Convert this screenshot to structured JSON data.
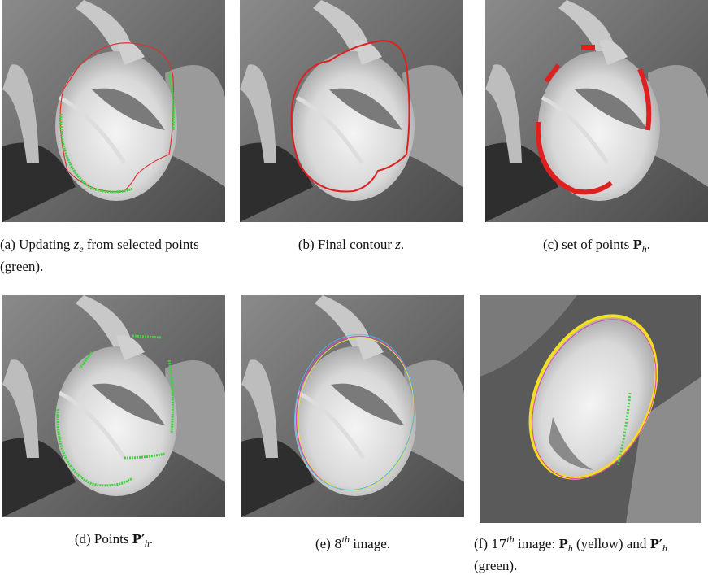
{
  "figure": {
    "panels": [
      {
        "caption": [
          "(a)  Updating ",
          "z",
          "e",
          " from selected points (green)."
        ]
      },
      {
        "caption": [
          "(b)  Final contour ",
          "z",
          "."
        ]
      },
      {
        "caption": [
          "(c)  set of points ",
          "P",
          "h",
          "."
        ]
      },
      {
        "caption": [
          "(d)  Points ",
          "P′",
          "h",
          "."
        ]
      },
      {
        "caption": [
          "(e)  ",
          "8",
          "th",
          " image."
        ]
      },
      {
        "caption": [
          "(f)  ",
          "17",
          "th",
          " image: ",
          "P",
          "h",
          " (yellow) and ",
          "P′",
          "h",
          " (green)."
        ]
      }
    ]
  }
}
